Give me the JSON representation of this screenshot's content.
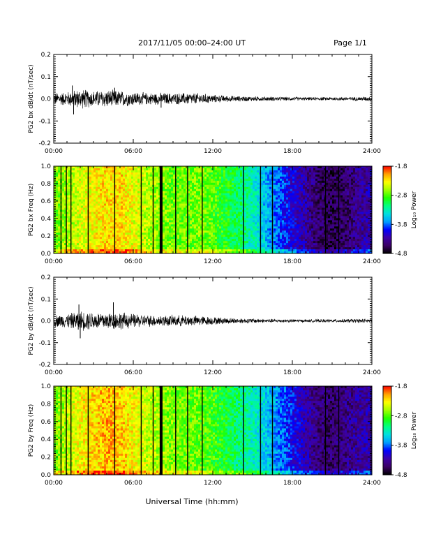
{
  "header": {
    "title": "2017/11/05  00:00–24:00 UT",
    "page": "Page 1/1"
  },
  "xlabel": "Universal Time (hh:mm)",
  "colors": {
    "trace": "#000000",
    "colormap": [
      "#000000",
      "#3a0064",
      "#3c00a8",
      "#0000ff",
      "#00a0ff",
      "#00e0e0",
      "#00ff80",
      "#20ff00",
      "#a0ff00",
      "#ffff00",
      "#ffa000",
      "#ff0000"
    ]
  },
  "chart_data": [
    {
      "type": "line",
      "name": "bx-waveform",
      "ylabel": "PG2 bx dB/dt (nT/sec)",
      "xlim": [
        0,
        24
      ],
      "ylim": [
        -0.2,
        0.2
      ],
      "x_ticks": [
        0,
        6,
        12,
        18,
        24
      ],
      "x_tick_labels": [
        "00:00",
        "06:00",
        "12:00",
        "18:00",
        "24:00"
      ],
      "y_ticks": [
        -0.2,
        -0.1,
        0.0,
        0.1,
        0.2
      ],
      "y_tick_labels": [
        "-0.2",
        "-0.1",
        "0.0",
        "0.1",
        "0.2"
      ],
      "amplitude_envelope": {
        "hours": [
          0,
          1,
          2,
          3,
          4,
          5,
          6,
          7,
          8,
          9,
          10,
          11,
          12,
          13,
          14,
          15,
          16,
          17,
          18,
          19,
          20,
          21,
          22,
          23,
          24
        ],
        "max_abs": [
          0.03,
          0.035,
          0.05,
          0.04,
          0.045,
          0.04,
          0.035,
          0.03,
          0.03,
          0.028,
          0.03,
          0.028,
          0.02,
          0.016,
          0.013,
          0.012,
          0.011,
          0.01,
          0.009,
          0.008,
          0.008,
          0.009,
          0.009,
          0.01,
          0.012
        ]
      },
      "spikes": [
        {
          "x": 1.4,
          "y": 0.06
        },
        {
          "x": 1.5,
          "y": -0.07
        },
        {
          "x": 4.6,
          "y": 0.05
        },
        {
          "x": 8.1,
          "y": -0.04
        }
      ]
    },
    {
      "type": "heatmap",
      "name": "bx-spectrogram",
      "ylabel": "PG2 bx Freq (Hz)",
      "xlim": [
        0,
        24
      ],
      "ylim": [
        0.0,
        1.0
      ],
      "x_ticks": [
        0,
        6,
        12,
        18,
        24
      ],
      "x_tick_labels": [
        "00:00",
        "06:00",
        "12:00",
        "18:00",
        "24:00"
      ],
      "y_ticks": [
        0.0,
        0.2,
        0.4,
        0.6,
        0.8,
        1.0
      ],
      "y_tick_labels": [
        "0.0",
        "0.2",
        "0.4",
        "0.6",
        "0.8",
        "1.0"
      ],
      "colorbar_label": "Log₁₀ Power",
      "colorbar_range": [
        -4.8,
        -1.8
      ],
      "colorbar_ticks": [
        -1.8,
        -2.8,
        -3.8,
        -4.8
      ],
      "colorbar_tick_labels": [
        "-1.8",
        "-2.8",
        "-3.8",
        "-4.8"
      ],
      "power_profile": {
        "hours": [
          0,
          1,
          2,
          3,
          4,
          5,
          6,
          7,
          8,
          9,
          10,
          11,
          12,
          13,
          14,
          15,
          16,
          17,
          18,
          19,
          20,
          21,
          22,
          23,
          24
        ],
        "log10_power": [
          -2.75,
          -2.6,
          -2.45,
          -2.35,
          -2.25,
          -2.25,
          -2.4,
          -2.55,
          -2.65,
          -2.75,
          -2.75,
          -2.7,
          -2.8,
          -2.95,
          -3.1,
          -3.3,
          -3.6,
          -3.85,
          -4.1,
          -4.3,
          -4.5,
          -4.6,
          -4.5,
          -4.35,
          -4.25
        ]
      },
      "gap_lines": [
        0.55,
        0.95,
        1.3,
        2.6,
        4.6,
        6.6,
        7.5,
        8.05,
        8.15,
        9.2,
        10.1,
        11.2,
        14.3,
        15.6,
        16.5,
        20.5,
        21.5
      ]
    },
    {
      "type": "line",
      "name": "by-waveform",
      "ylabel": "PG2 by dB/dt (nT/sec)",
      "xlim": [
        0,
        24
      ],
      "ylim": [
        -0.2,
        0.2
      ],
      "x_ticks": [
        0,
        6,
        12,
        18,
        24
      ],
      "x_tick_labels": [
        "00:00",
        "06:00",
        "12:00",
        "18:00",
        "24:00"
      ],
      "y_ticks": [
        -0.2,
        -0.1,
        0.0,
        0.1,
        0.2
      ],
      "y_tick_labels": [
        "-0.2",
        "-0.1",
        "0.0",
        "0.1",
        "0.2"
      ],
      "amplitude_envelope": {
        "hours": [
          0,
          1,
          2,
          3,
          4,
          5,
          6,
          7,
          8,
          9,
          10,
          11,
          12,
          13,
          14,
          15,
          16,
          17,
          18,
          19,
          20,
          21,
          22,
          23,
          24
        ],
        "max_abs": [
          0.03,
          0.035,
          0.05,
          0.045,
          0.045,
          0.045,
          0.035,
          0.03,
          0.028,
          0.028,
          0.028,
          0.025,
          0.02,
          0.016,
          0.013,
          0.012,
          0.01,
          0.009,
          0.008,
          0.007,
          0.008,
          0.008,
          0.009,
          0.01,
          0.012
        ]
      },
      "spikes": [
        {
          "x": 1.9,
          "y": 0.075
        },
        {
          "x": 1.85,
          "y": -0.04
        },
        {
          "x": 4.5,
          "y": 0.085
        },
        {
          "x": 2.0,
          "y": -0.08
        }
      ]
    },
    {
      "type": "heatmap",
      "name": "by-spectrogram",
      "ylabel": "PG2 by Freq (Hz)",
      "xlim": [
        0,
        24
      ],
      "ylim": [
        0.0,
        1.0
      ],
      "x_ticks": [
        0,
        6,
        12,
        18,
        24
      ],
      "x_tick_labels": [
        "00:00",
        "06:00",
        "12:00",
        "18:00",
        "24:00"
      ],
      "y_ticks": [
        0.0,
        0.2,
        0.4,
        0.6,
        0.8,
        1.0
      ],
      "y_tick_labels": [
        "0.0",
        "0.2",
        "0.4",
        "0.6",
        "0.8",
        "1.0"
      ],
      "colorbar_label": "Log₁₀ Power",
      "colorbar_range": [
        -4.8,
        -1.8
      ],
      "colorbar_ticks": [
        -1.8,
        -2.8,
        -3.8,
        -4.8
      ],
      "colorbar_tick_labels": [
        "-1.8",
        "-2.8",
        "-3.8",
        "-4.8"
      ],
      "power_profile": {
        "hours": [
          0,
          1,
          2,
          3,
          4,
          5,
          6,
          7,
          8,
          9,
          10,
          11,
          12,
          13,
          14,
          15,
          16,
          17,
          18,
          19,
          20,
          21,
          22,
          23,
          24
        ],
        "log10_power": [
          -2.7,
          -2.55,
          -2.35,
          -2.25,
          -2.15,
          -2.2,
          -2.35,
          -2.5,
          -2.6,
          -2.7,
          -2.75,
          -2.75,
          -2.85,
          -3.0,
          -3.15,
          -3.3,
          -3.5,
          -3.75,
          -4.0,
          -4.25,
          -4.45,
          -4.5,
          -4.4,
          -4.3,
          -4.25
        ]
      },
      "gap_lines": [
        0.55,
        0.95,
        1.3,
        2.6,
        4.6,
        6.6,
        7.5,
        8.05,
        8.15,
        9.2,
        10.1,
        11.2,
        14.3,
        15.6,
        16.5,
        20.5,
        21.5
      ]
    }
  ]
}
